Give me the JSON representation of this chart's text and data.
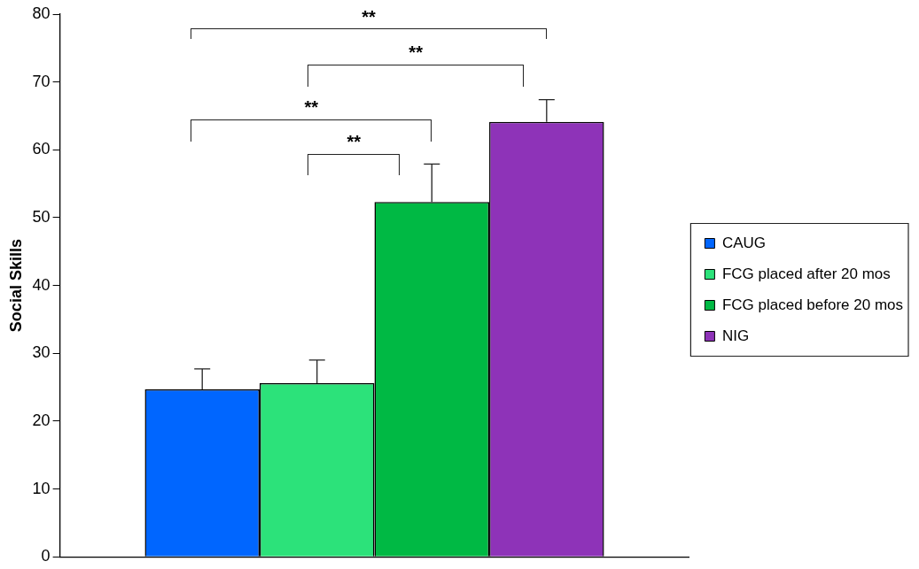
{
  "chart_data": {
    "type": "bar",
    "ylabel": "Social Skills",
    "categories": [
      null
    ],
    "series": [
      {
        "name": "CAUG",
        "color": "#0066ff",
        "values": [
          24.7
        ],
        "errors": [
          3.0
        ]
      },
      {
        "name": "FCG placed after 20 mos",
        "color": "#2ce27a",
        "values": [
          25.6
        ],
        "errors": [
          3.4
        ]
      },
      {
        "name": "FCG placed before 20 mos",
        "color": "#00b944",
        "values": [
          52.3
        ],
        "errors": [
          5.6
        ]
      },
      {
        "name": "NIG",
        "color": "#8e33b8",
        "values": [
          64.1
        ],
        "errors": [
          3.3
        ]
      }
    ],
    "ylim": [
      0,
      80
    ],
    "yticks": [
      0,
      10,
      20,
      30,
      40,
      50,
      60,
      70,
      80
    ],
    "grid": false,
    "legend": "right",
    "tick_labels": "y",
    "annotations": [
      "**",
      "**",
      "**",
      "**"
    ]
  }
}
